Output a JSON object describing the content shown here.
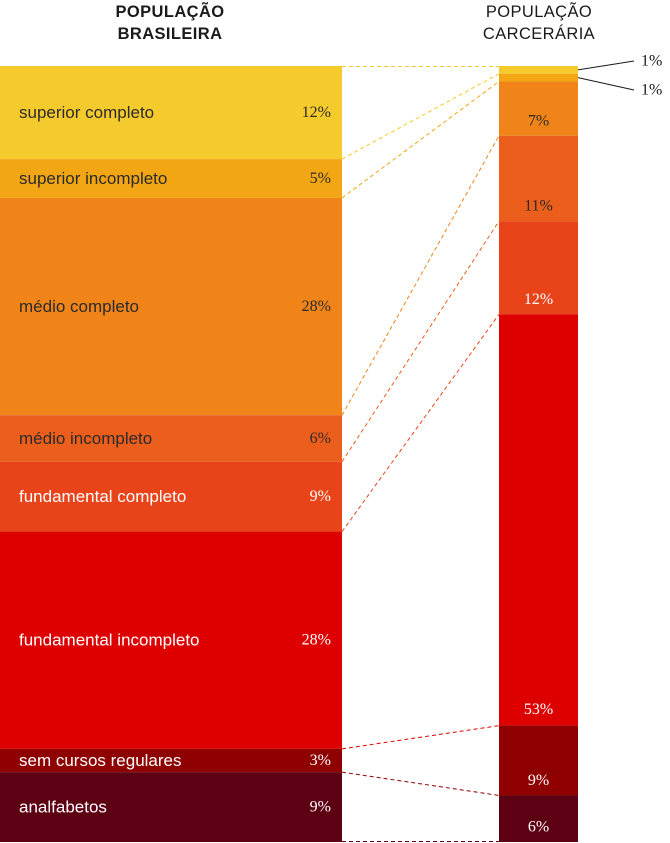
{
  "chart_data": {
    "type": "bar",
    "subtype": "stacked-100-percent-comparison",
    "series": [
      {
        "name": "POPULAÇÃO BRASILEIRA",
        "header_lines": [
          "POPULAÇÃO",
          "BRASILEIRA"
        ],
        "values": [
          12,
          5,
          28,
          6,
          9,
          28,
          3,
          9
        ]
      },
      {
        "name": "POPULAÇÃO CARCERÁRIA",
        "header_lines": [
          "POPULAÇÃO",
          "CARCERÁRIA"
        ],
        "values": [
          1,
          1,
          7,
          11,
          12,
          53,
          9,
          6
        ]
      }
    ],
    "categories": [
      "superior completo",
      "superior incompleto",
      "médio completo",
      "médio incompleto",
      "fundamental completo",
      "fundamental incompleto",
      "sem cursos regulares",
      "analfabetos"
    ],
    "colors": [
      "#f5ca2c",
      "#f2a614",
      "#f08418",
      "#ec5e1b",
      "#e9431a",
      "#de0000",
      "#8f0000",
      "#5e0014"
    ],
    "label_colors": [
      "#2b2b2b",
      "#2b2b2b",
      "#2b2b2b",
      "#2b2b2b",
      "#ffffff",
      "#ffffff",
      "#ffffff",
      "#ffffff"
    ],
    "left_pct_labels": [
      "12%",
      "5%",
      "28%",
      "6%",
      "9%",
      "28%",
      "3%",
      "9%"
    ],
    "right_pct_labels": [
      "1%",
      "1%",
      "7%",
      "11%",
      "12%",
      "53%",
      "9%",
      "6%"
    ],
    "unit": "%",
    "connectors": "dashed lines linking category boundaries between the two columns"
  }
}
